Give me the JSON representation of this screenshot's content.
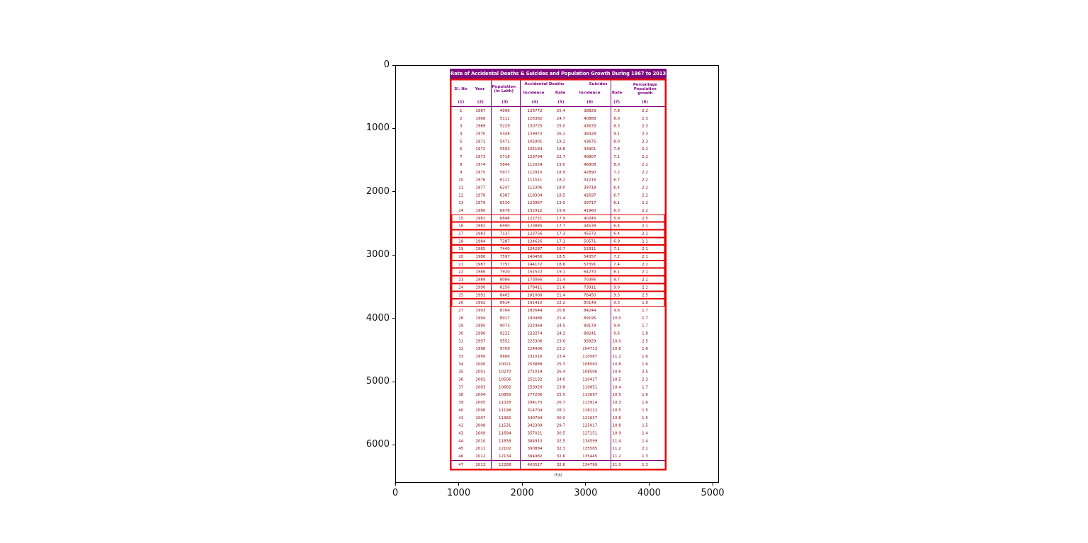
{
  "figure": {
    "background": "#ffffff",
    "xticks": [
      "0",
      "1000",
      "2000",
      "3000",
      "4000",
      "5000"
    ],
    "yticks": [
      "0",
      "1000",
      "2000",
      "3000",
      "4000",
      "5000",
      "6000"
    ]
  },
  "chart_data": {
    "type": "table",
    "title": "Rate of Accidental Deaths & Suicides and Population Growth During 1967 to 2013",
    "axes": {
      "xlim": [
        0,
        5100
      ],
      "ylim": [
        6600,
        0
      ],
      "grid": false,
      "xticks": [
        0,
        1000,
        2000,
        3000,
        4000,
        5000
      ],
      "yticks": [
        0,
        1000,
        2000,
        3000,
        4000,
        5000,
        6000
      ]
    },
    "header": {
      "sl_no": "Sl. No",
      "year": "Year",
      "population": "Population (in Lakh)",
      "accidental_group": "Accidental Deaths",
      "suicides_group": "Suicides",
      "growth": "Percentage Population growth",
      "incidence": "Incidence",
      "rate": "Rate",
      "col_numbers": [
        "(1)",
        "(2)",
        "(3)",
        "(4)",
        "(5)",
        "(6)",
        "(7)",
        "(8)"
      ]
    },
    "columns": [
      "Sl. No",
      "Year",
      "Population (in Lakh)",
      "Accidental Deaths Incidence",
      "Accidental Deaths Rate",
      "Suicides Incidence",
      "Suicides Rate",
      "Percentage Population growth"
    ],
    "rows": [
      [
        1,
        1967,
        4996,
        126772,
        25.4,
        38829,
        7.8,
        2.2
      ],
      [
        2,
        1968,
        5111,
        126382,
        24.7,
        40888,
        8.0,
        2.3
      ],
      [
        3,
        1969,
        5229,
        130725,
        25.0,
        43633,
        8.3,
        2.3
      ],
      [
        4,
        1970,
        5348,
        139972,
        26.2,
        48428,
        9.1,
        2.3
      ],
      [
        5,
        1971,
        5471,
        105901,
        19.2,
        43675,
        8.0,
        2.3
      ],
      [
        6,
        1972,
        5593,
        105184,
        18.8,
        43901,
        7.8,
        2.2
      ],
      [
        7,
        1973,
        5718,
        129794,
        22.7,
        40807,
        7.1,
        2.2
      ],
      [
        8,
        1974,
        5846,
        112024,
        19.0,
        46808,
        8.0,
        2.2
      ],
      [
        9,
        1975,
        5977,
        112910,
        18.9,
        42890,
        7.2,
        2.2
      ],
      [
        10,
        1976,
        6111,
        111511,
        18.2,
        41216,
        6.7,
        2.2
      ],
      [
        11,
        1977,
        6247,
        112306,
        18.0,
        39718,
        6.4,
        2.2
      ],
      [
        12,
        1978,
        6387,
        118304,
        18.5,
        42697,
        6.7,
        2.2
      ],
      [
        13,
        1979,
        6530,
        123967,
        19.0,
        39717,
        6.1,
        2.2
      ],
      [
        14,
        1980,
        6676,
        132912,
        19.9,
        41960,
        6.3,
        2.2
      ],
      [
        15,
        1981,
        6846,
        122721,
        17.9,
        40245,
        5.9,
        2.5
      ],
      [
        16,
        1982,
        6990,
        123885,
        17.7,
        44538,
        6.4,
        2.1
      ],
      [
        17,
        1983,
        7137,
        123756,
        17.3,
        45572,
        6.4,
        2.1
      ],
      [
        18,
        1984,
        7287,
        124626,
        17.1,
        50571,
        6.9,
        2.1
      ],
      [
        19,
        1985,
        7440,
        124287,
        16.7,
        52811,
        7.1,
        2.1
      ],
      [
        20,
        1986,
        7597,
        140456,
        18.5,
        54357,
        7.2,
        2.1
      ],
      [
        21,
        1987,
        7757,
        144172,
        18.6,
        57391,
        7.4,
        2.1
      ],
      [
        22,
        1988,
        7920,
        151522,
        19.1,
        64270,
        8.1,
        2.1
      ],
      [
        23,
        1989,
        8086,
        173066,
        21.4,
        70386,
        8.7,
        2.1
      ],
      [
        24,
        1990,
        8256,
        178411,
        21.6,
        73911,
        9.0,
        2.1
      ],
      [
        25,
        1991,
        8462,
        181000,
        21.4,
        78450,
        9.3,
        2.5
      ],
      [
        26,
        1992,
        8614,
        191410,
        22.2,
        80149,
        9.3,
        1.8
      ],
      [
        27,
        1993,
        8764,
        182644,
        20.8,
        84244,
        9.6,
        1.7
      ],
      [
        28,
        1994,
        8917,
        190486,
        21.4,
        89195,
        10.0,
        1.7
      ],
      [
        29,
        1995,
        9073,
        222469,
        24.5,
        89178,
        9.8,
        1.7
      ],
      [
        30,
        1996,
        9232,
        223274,
        24.2,
        88241,
        9.6,
        1.8
      ],
      [
        31,
        1997,
        9552,
        225306,
        23.6,
        95829,
        10.0,
        2.5
      ],
      [
        32,
        1998,
        9709,
        224906,
        23.2,
        104713,
        10.8,
        1.6
      ],
      [
        33,
        1999,
        9866,
        231016,
        23.4,
        110587,
        11.2,
        1.6
      ],
      [
        34,
        2000,
        10021,
        253888,
        25.3,
        108593,
        10.8,
        1.6
      ],
      [
        35,
        2001,
        10270,
        271019,
        26.4,
        108506,
        10.6,
        2.5
      ],
      [
        36,
        2002,
        10506,
        252132,
        24.0,
        110417,
        10.5,
        2.3
      ],
      [
        37,
        2003,
        10682,
        253926,
        23.8,
        110851,
        10.4,
        1.7
      ],
      [
        38,
        2004,
        10856,
        277206,
        25.5,
        113697,
        10.5,
        1.6
      ],
      [
        39,
        2005,
        11028,
        294175,
        26.7,
        113914,
        10.3,
        1.6
      ],
      [
        40,
        2006,
        11198,
        314704,
        28.1,
        118112,
        10.5,
        1.5
      ],
      [
        41,
        2007,
        11366,
        340794,
        30.0,
        122637,
        10.8,
        1.5
      ],
      [
        42,
        2008,
        11531,
        342309,
        29.7,
        125017,
        10.8,
        1.5
      ],
      [
        43,
        2009,
        11694,
        357021,
        30.5,
        127151,
        10.9,
        1.4
      ],
      [
        44,
        2010,
        11858,
        384910,
        32.5,
        134599,
        11.4,
        1.4
      ],
      [
        45,
        2011,
        12102,
        390884,
        32.3,
        135585,
        11.2,
        2.1
      ],
      [
        46,
        2012,
        12134,
        394982,
        32.6,
        135445,
        11.2,
        1.3
      ],
      [
        47,
        2013,
        12288,
        400517,
        32.6,
        134799,
        11.0,
        1.3
      ]
    ],
    "boxed_row_numbers": [
      15,
      16,
      17,
      18,
      19,
      20,
      21,
      22,
      23,
      24,
      25,
      26
    ],
    "footnote": "(P.A)",
    "colors": {
      "title_bg": "#7d0c7d",
      "header_text": "#800080",
      "data_text": "#8b0000",
      "outer_border": "#ee0000",
      "row_box": "#e30000",
      "divider": "#800080"
    }
  }
}
